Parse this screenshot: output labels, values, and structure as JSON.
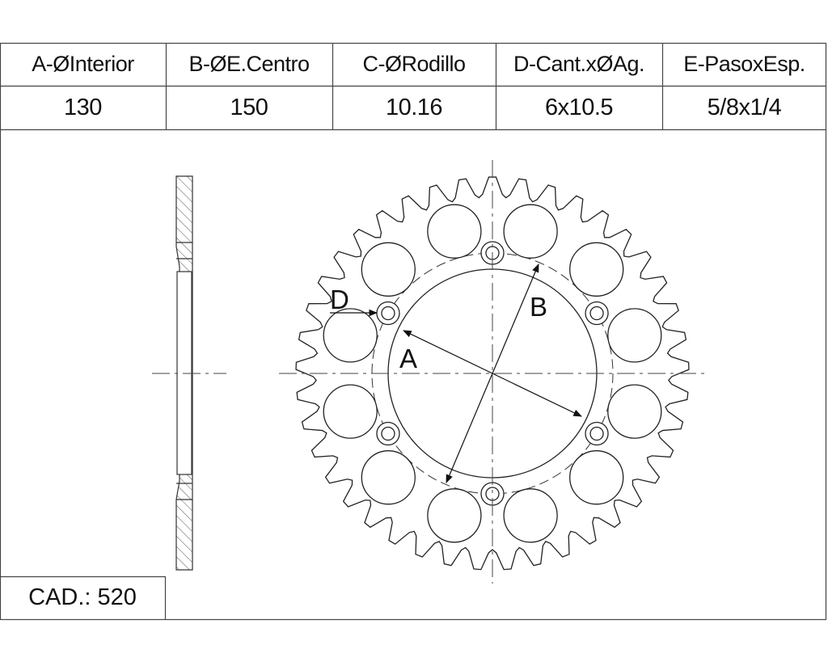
{
  "specs": {
    "headers": [
      "A-ØInterior",
      "B-ØE.Centro",
      "C-ØRodillo",
      "D-Cant.xØAg.",
      "E-PasoxEsp."
    ],
    "values": [
      "130",
      "150",
      "10.16",
      "6x10.5",
      "5/8x1/4"
    ]
  },
  "cad": "CAD.: 520",
  "labels": {
    "a": "A",
    "b": "B",
    "d": "D"
  },
  "sprocket": {
    "teeth": 41,
    "bolt_holes": 6,
    "lightening_holes": 12,
    "line_color": "#222222"
  }
}
